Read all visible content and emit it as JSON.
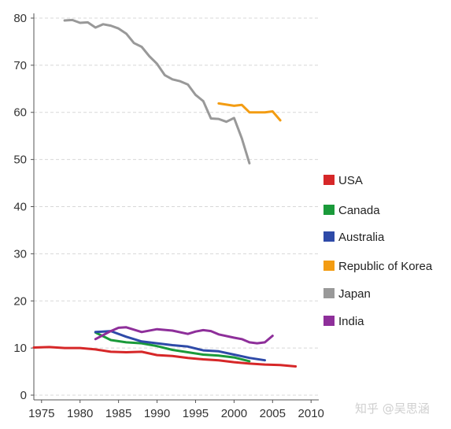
{
  "chart_data": {
    "type": "line",
    "title": "",
    "xlabel": "",
    "ylabel": "",
    "xlim": [
      1974,
      2011
    ],
    "ylim": [
      -1,
      81
    ],
    "x_ticks": [
      1975,
      1980,
      1985,
      1990,
      1995,
      2000,
      2005,
      2010
    ],
    "y_ticks": [
      0,
      10,
      20,
      30,
      40,
      50,
      60,
      70,
      80
    ],
    "grid": "horizontal dashed",
    "legend_position": "right",
    "series": [
      {
        "name": "USA",
        "color": "#d62728",
        "points": [
          [
            1974,
            10.1
          ],
          [
            1976,
            10.2
          ],
          [
            1978,
            10.0
          ],
          [
            1980,
            10.0
          ],
          [
            1982,
            9.7
          ],
          [
            1984,
            9.2
          ],
          [
            1986,
            9.1
          ],
          [
            1988,
            9.2
          ],
          [
            1990,
            8.5
          ],
          [
            1992,
            8.3
          ],
          [
            1994,
            7.9
          ],
          [
            1996,
            7.6
          ],
          [
            1998,
            7.4
          ],
          [
            2000,
            7.0
          ],
          [
            2002,
            6.7
          ],
          [
            2004,
            6.5
          ],
          [
            2006,
            6.4
          ],
          [
            2008,
            6.1
          ]
        ]
      },
      {
        "name": "Canada",
        "color": "#1a9a3a",
        "points": [
          [
            1982,
            13.3
          ],
          [
            1984,
            11.7
          ],
          [
            1986,
            11.2
          ],
          [
            1988,
            11.0
          ],
          [
            1990,
            10.4
          ],
          [
            1992,
            9.6
          ],
          [
            1994,
            9.1
          ],
          [
            1996,
            8.6
          ],
          [
            1998,
            8.4
          ],
          [
            2000,
            8.0
          ],
          [
            2002,
            7.2
          ]
        ]
      },
      {
        "name": "Australia",
        "color": "#2e4aa8",
        "points": [
          [
            1982,
            13.4
          ],
          [
            1984,
            13.6
          ],
          [
            1986,
            12.4
          ],
          [
            1988,
            11.4
          ],
          [
            1990,
            11.0
          ],
          [
            1992,
            10.6
          ],
          [
            1994,
            10.3
          ],
          [
            1996,
            9.5
          ],
          [
            1998,
            9.3
          ],
          [
            2000,
            8.6
          ],
          [
            2002,
            7.9
          ],
          [
            2004,
            7.4
          ]
        ]
      },
      {
        "name": "Republic of Korea",
        "color": "#f39c12",
        "points": [
          [
            1998,
            61.9
          ],
          [
            2000,
            61.4
          ],
          [
            2001,
            61.6
          ],
          [
            2002,
            60.0
          ],
          [
            2004,
            60.0
          ],
          [
            2005,
            60.2
          ],
          [
            2006,
            58.3
          ]
        ]
      },
      {
        "name": "Japan",
        "color": "#999999",
        "points": [
          [
            1978,
            79.5
          ],
          [
            1979,
            79.6
          ],
          [
            1980,
            79.0
          ],
          [
            1981,
            79.1
          ],
          [
            1982,
            78.0
          ],
          [
            1983,
            78.7
          ],
          [
            1984,
            78.4
          ],
          [
            1985,
            77.8
          ],
          [
            1986,
            76.7
          ],
          [
            1987,
            74.7
          ],
          [
            1988,
            73.9
          ],
          [
            1989,
            71.9
          ],
          [
            1990,
            70.3
          ],
          [
            1991,
            67.9
          ],
          [
            1992,
            67.0
          ],
          [
            1993,
            66.6
          ],
          [
            1994,
            65.9
          ],
          [
            1995,
            63.7
          ],
          [
            1996,
            62.4
          ],
          [
            1997,
            58.7
          ],
          [
            1998,
            58.6
          ],
          [
            1999,
            58.0
          ],
          [
            2000,
            58.8
          ],
          [
            2001,
            54.5
          ],
          [
            2002,
            49.2
          ]
        ]
      },
      {
        "name": "India",
        "color": "#8e2f9a",
        "points": [
          [
            1982,
            11.9
          ],
          [
            1984,
            13.6
          ],
          [
            1985,
            14.3
          ],
          [
            1986,
            14.4
          ],
          [
            1988,
            13.4
          ],
          [
            1990,
            14.0
          ],
          [
            1992,
            13.7
          ],
          [
            1994,
            13.0
          ],
          [
            1995,
            13.5
          ],
          [
            1996,
            13.8
          ],
          [
            1997,
            13.6
          ],
          [
            1998,
            12.9
          ],
          [
            2000,
            12.2
          ],
          [
            2001,
            11.9
          ],
          [
            2002,
            11.2
          ],
          [
            2003,
            11.0
          ],
          [
            2004,
            11.2
          ],
          [
            2005,
            12.6
          ]
        ]
      }
    ]
  },
  "watermark": "知乎 @吴思涵"
}
